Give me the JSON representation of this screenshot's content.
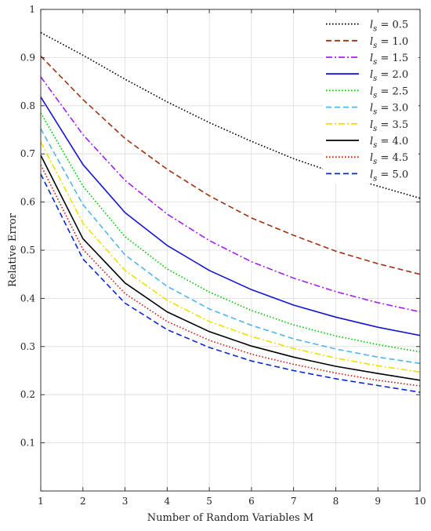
{
  "chart_data": {
    "type": "line",
    "title": "",
    "xlabel": "Number of Random Variables M",
    "ylabel": "Relative Error",
    "xlim": [
      1,
      10
    ],
    "ylim": [
      0,
      1
    ],
    "xticks": [
      1,
      2,
      3,
      4,
      5,
      6,
      7,
      8,
      9,
      10
    ],
    "yticks": [
      0,
      0.1,
      0.2,
      0.3,
      0.4,
      0.5,
      0.6,
      0.7,
      0.8,
      0.9,
      1
    ],
    "ytick_labels": [
      "",
      "0.1",
      "0.2",
      "0.3",
      "0.4",
      "0.5",
      "0.6",
      "0.7",
      "0.8",
      "0.9",
      "1"
    ],
    "grid": true,
    "legend_position": "top-right",
    "x": [
      1,
      2,
      3,
      4,
      5,
      6,
      7,
      8,
      9,
      10
    ],
    "series": [
      {
        "name": "l_s = 0.5",
        "label_base": "l",
        "label_sub": "s",
        "label_rest": " = 0.5",
        "color": "#000000",
        "dash": "dotted",
        "values": [
          0.952,
          0.905,
          0.855,
          0.808,
          0.765,
          0.726,
          0.69,
          0.66,
          0.633,
          0.608
        ]
      },
      {
        "name": "l_s = 1.0",
        "label_base": "l",
        "label_sub": "s",
        "label_rest": " = 1.0",
        "color": "#a0300e",
        "dash": "dashed",
        "values": [
          0.903,
          0.813,
          0.732,
          0.668,
          0.613,
          0.567,
          0.531,
          0.498,
          0.472,
          0.45
        ]
      },
      {
        "name": "l_s = 1.5",
        "label_base": "l",
        "label_sub": "s",
        "label_rest": " = 1.5",
        "color": "#a020f0",
        "dash": "dashdot",
        "values": [
          0.86,
          0.74,
          0.645,
          0.575,
          0.52,
          0.476,
          0.442,
          0.414,
          0.391,
          0.372
        ]
      },
      {
        "name": "l_s = 2.0",
        "label_base": "l",
        "label_sub": "s",
        "label_rest": " = 2.0",
        "color": "#1414d2",
        "dash": "solid",
        "values": [
          0.818,
          0.678,
          0.578,
          0.51,
          0.458,
          0.418,
          0.386,
          0.361,
          0.34,
          0.323
        ]
      },
      {
        "name": "l_s = 2.5",
        "label_base": "l",
        "label_sub": "s",
        "label_rest": " = 2.5",
        "color": "#00c800",
        "dash": "dotted",
        "values": [
          0.785,
          0.633,
          0.528,
          0.461,
          0.413,
          0.375,
          0.345,
          0.322,
          0.304,
          0.289
        ]
      },
      {
        "name": "l_s = 3.0",
        "label_base": "l",
        "label_sub": "s",
        "label_rest": " = 3.0",
        "color": "#50b4ee",
        "dash": "dashed",
        "values": [
          0.752,
          0.595,
          0.49,
          0.425,
          0.378,
          0.344,
          0.316,
          0.295,
          0.278,
          0.265
        ]
      },
      {
        "name": "l_s = 3.5",
        "label_base": "l",
        "label_sub": "s",
        "label_rest": " = 3.5",
        "color": "#f0e000",
        "dash": "dashdot",
        "values": [
          0.725,
          0.556,
          0.458,
          0.396,
          0.352,
          0.321,
          0.296,
          0.276,
          0.26,
          0.247
        ]
      },
      {
        "name": "l_s = 4.0",
        "label_base": "l",
        "label_sub": "s",
        "label_rest": " = 4.0",
        "color": "#000000",
        "dash": "solid",
        "values": [
          0.697,
          0.524,
          0.432,
          0.372,
          0.331,
          0.301,
          0.278,
          0.259,
          0.244,
          0.23
        ]
      },
      {
        "name": "l_s = 4.5",
        "label_base": "l",
        "label_sub": "s",
        "label_rest": " = 4.5",
        "color": "#c8200a",
        "dash": "dotted",
        "values": [
          0.677,
          0.502,
          0.41,
          0.352,
          0.313,
          0.284,
          0.263,
          0.245,
          0.23,
          0.218
        ]
      },
      {
        "name": "l_s = 5.0",
        "label_base": "l",
        "label_sub": "s",
        "label_rest": " = 5.0",
        "color": "#0a28d2",
        "dash": "dashed",
        "values": [
          0.658,
          0.482,
          0.39,
          0.335,
          0.298,
          0.27,
          0.25,
          0.233,
          0.219,
          0.205
        ]
      }
    ]
  }
}
